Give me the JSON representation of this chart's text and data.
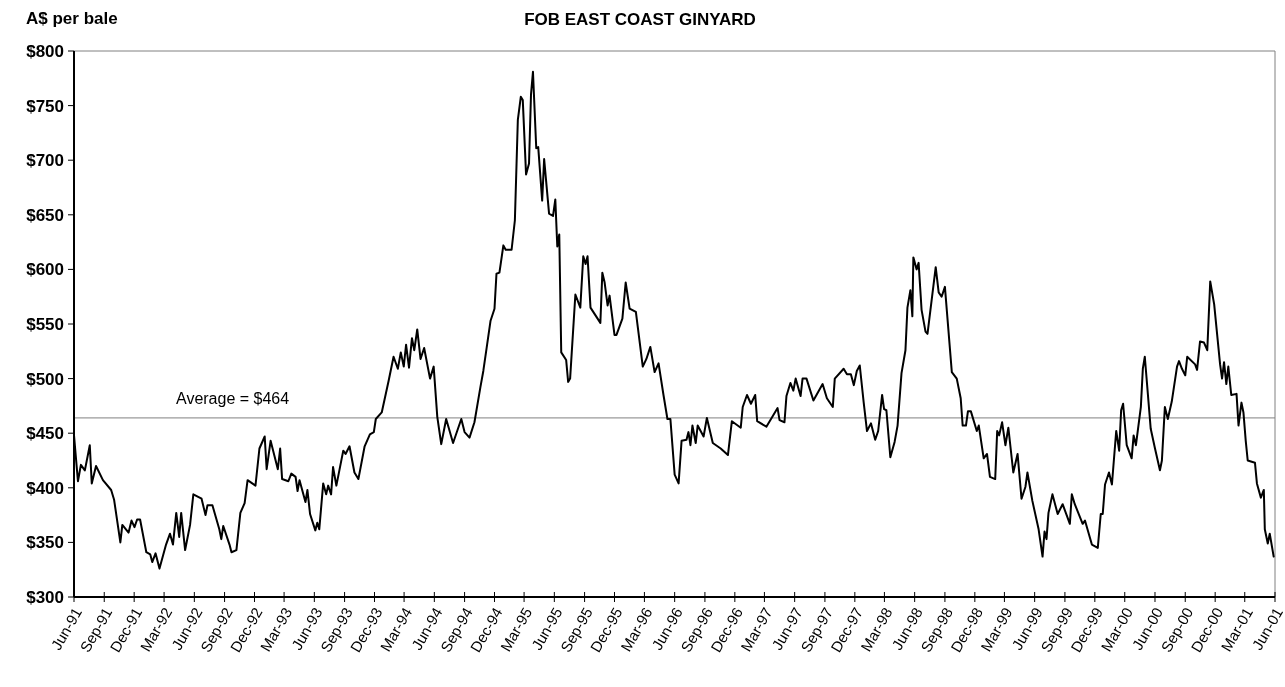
{
  "chart_data": {
    "type": "line",
    "subtitle": "FOB EAST COAST GINYARD",
    "ylabel": "A$ per bale",
    "x": [
      "1991-06-01",
      "1991-06-13",
      "1991-06-22",
      "1991-07-04",
      "1991-07-19",
      "1991-07-25",
      "1991-08-07",
      "1991-08-28",
      "1991-09-22",
      "1991-10-01",
      "1991-10-20",
      "1991-10-26",
      "1991-11-14",
      "1991-11-23",
      "1991-12-02",
      "1991-12-10",
      "1991-12-19",
      "1992-01-07",
      "1992-01-19",
      "1992-01-25",
      "1992-02-04",
      "1992-02-16",
      "1992-03-07",
      "1992-03-19",
      "1992-03-28",
      "1992-04-07",
      "1992-04-16",
      "1992-04-22",
      "1992-05-04",
      "1992-05-19",
      "1992-05-29",
      "1992-06-23",
      "1992-07-05",
      "1992-07-11",
      "1992-07-26",
      "1992-08-16",
      "1992-08-22",
      "1992-08-28",
      "1992-09-16",
      "1992-09-22",
      "1992-10-07",
      "1992-10-19",
      "1992-11-01",
      "1992-11-10",
      "1992-12-04",
      "1992-12-16",
      "1993-01-01",
      "1993-01-07",
      "1993-01-19",
      "1993-02-10",
      "1993-02-17",
      "1993-02-23",
      "1993-03-14",
      "1993-03-23",
      "1993-04-05",
      "1993-04-11",
      "1993-04-17",
      "1993-05-05",
      "1993-05-11",
      "1993-05-19",
      "1993-06-04",
      "1993-06-10",
      "1993-06-16",
      "1993-06-28",
      "1993-07-07",
      "1993-07-13",
      "1993-07-22",
      "1993-07-28",
      "1993-08-07",
      "1993-08-28",
      "1993-09-04",
      "1993-09-16",
      "1993-10-01",
      "1993-10-13",
      "1993-11-01",
      "1993-11-17",
      "1993-11-29",
      "1993-12-05",
      "1993-12-23",
      "1994-01-13",
      "1994-01-28",
      "1994-02-10",
      "1994-02-19",
      "1994-02-28",
      "1994-03-07",
      "1994-03-16",
      "1994-03-25",
      "1994-04-01",
      "1994-04-10",
      "1994-04-20",
      "1994-05-01",
      "1994-05-19",
      "1994-05-30",
      "1994-06-10",
      "1994-06-22",
      "1994-07-07",
      "1994-07-28",
      "1994-08-22",
      "1994-09-01",
      "1994-09-16",
      "1994-10-01",
      "1994-10-19",
      "1994-10-28",
      "1994-11-07",
      "1994-11-19",
      "1994-12-01",
      "1994-12-07",
      "1994-12-16",
      "1994-12-28",
      "1995-01-04",
      "1995-01-22",
      "1995-02-01",
      "1995-02-10",
      "1995-02-19",
      "1995-02-25",
      "1995-03-07",
      "1995-03-16",
      "1995-03-22",
      "1995-03-28",
      "1995-04-07",
      "1995-04-13",
      "1995-04-25",
      "1995-05-01",
      "1995-05-16",
      "1995-05-28",
      "1995-06-04",
      "1995-06-10",
      "1995-06-16",
      "1995-06-22",
      "1995-07-07",
      "1995-07-13",
      "1995-07-19",
      "1995-08-04",
      "1995-08-19",
      "1995-08-28",
      "1995-09-04",
      "1995-09-10",
      "1995-09-19",
      "1995-10-19",
      "1995-10-25",
      "1995-11-01",
      "1995-11-10",
      "1995-11-16",
      "1995-12-01",
      "1995-12-07",
      "1995-12-25",
      "1996-01-04",
      "1996-01-16",
      "1996-02-04",
      "1996-02-25",
      "1996-03-07",
      "1996-03-19",
      "1996-04-01",
      "1996-04-13",
      "1996-04-28",
      "1996-05-10",
      "1996-05-19",
      "1996-06-01",
      "1996-06-13",
      "1996-06-22",
      "1996-07-07",
      "1996-07-13",
      "1996-07-19",
      "1996-07-25",
      "1996-08-04",
      "1996-08-10",
      "1996-08-28",
      "1996-09-07",
      "1996-09-25",
      "1996-10-19",
      "1996-11-10",
      "1996-11-22",
      "1996-12-19",
      "1996-12-25",
      "1997-01-07",
      "1997-01-19",
      "1997-02-01",
      "1997-02-07",
      "1997-03-07",
      "1997-04-10",
      "1997-04-16",
      "1997-05-01",
      "1997-05-07",
      "1997-05-19",
      "1997-05-28",
      "1997-06-04",
      "1997-06-19",
      "1997-06-25",
      "1997-07-07",
      "1997-07-28",
      "1997-08-25",
      "1997-09-07",
      "1997-09-25",
      "1997-10-01",
      "1997-10-28",
      "1997-11-07",
      "1997-11-19",
      "1997-11-28",
      "1997-12-07",
      "1997-12-16",
      "1997-12-28",
      "1998-01-07",
      "1998-01-19",
      "1998-02-01",
      "1998-02-10",
      "1998-02-22",
      "1998-02-28",
      "1998-03-07",
      "1998-03-19",
      "1998-04-01",
      "1998-04-10",
      "1998-04-22",
      "1998-05-04",
      "1998-05-10",
      "1998-05-19",
      "1998-05-25",
      "1998-05-28",
      "1998-06-07",
      "1998-06-13",
      "1998-06-22",
      "1998-07-04",
      "1998-07-10",
      "1998-08-04",
      "1998-08-13",
      "1998-08-22",
      "1998-09-01",
      "1998-09-22",
      "1998-10-07",
      "1998-10-19",
      "1998-10-25",
      "1998-11-04",
      "1998-11-10",
      "1998-11-19",
      "1998-12-07",
      "1998-12-13",
      "1998-12-28",
      "1999-01-07",
      "1999-01-16",
      "1999-02-01",
      "1999-02-07",
      "1999-02-13",
      "1999-02-22",
      "1999-03-04",
      "1999-03-13",
      "1999-03-28",
      "1999-04-10",
      "1999-04-22",
      "1999-05-04",
      "1999-05-10",
      "1999-05-25",
      "1999-06-13",
      "1999-06-25",
      "1999-07-01",
      "1999-07-07",
      "1999-07-13",
      "1999-07-25",
      "1999-08-10",
      "1999-08-25",
      "1999-09-16",
      "1999-09-22",
      "1999-10-01",
      "1999-10-25",
      "1999-11-01",
      "1999-11-22",
      "1999-12-10",
      "1999-12-19",
      "1999-12-25",
      "2000-01-01",
      "2000-01-13",
      "2000-01-22",
      "2000-02-04",
      "2000-02-13",
      "2000-02-19",
      "2000-02-25",
      "2000-03-07",
      "2000-03-22",
      "2000-03-28",
      "2000-04-04",
      "2000-04-19",
      "2000-04-25",
      "2000-05-01",
      "2000-05-19",
      "2000-06-01",
      "2000-06-16",
      "2000-06-22",
      "2000-07-01",
      "2000-07-10",
      "2000-07-22",
      "2000-08-07",
      "2000-08-13",
      "2000-08-22",
      "2000-09-01",
      "2000-09-07",
      "2000-10-01",
      "2000-10-07",
      "2000-10-16",
      "2000-10-28",
      "2000-11-07",
      "2000-11-16",
      "2000-11-28",
      "2000-12-16",
      "2000-12-22",
      "2000-12-28",
      "2001-01-04",
      "2001-01-10",
      "2001-01-19",
      "2001-02-04",
      "2001-02-10",
      "2001-02-19",
      "2001-02-25",
      "2001-03-04",
      "2001-03-10",
      "2001-04-01",
      "2001-04-07",
      "2001-04-19",
      "2001-04-28",
      "2001-05-01",
      "2001-05-10",
      "2001-05-16",
      "2001-05-28"
    ],
    "series": [
      {
        "color": "#000000",
        "values": [
          448,
          406,
          421,
          416,
          439,
          404,
          420,
          407,
          398,
          389,
          350,
          366,
          359,
          370,
          364,
          371,
          371,
          341,
          339,
          332,
          340,
          326,
          348,
          358,
          348,
          377,
          355,
          377,
          343,
          366,
          394,
          390,
          375,
          384,
          384,
          362,
          353,
          365,
          348,
          341,
          343,
          377,
          386,
          407,
          402,
          436,
          447,
          417,
          443,
          417,
          436,
          408,
          406,
          413,
          410,
          397,
          407,
          387,
          398,
          376,
          361,
          368,
          362,
          404,
          394,
          402,
          394,
          419,
          402,
          434,
          431,
          438,
          414,
          408,
          438,
          449,
          451,
          463,
          469,
          498,
          520,
          509,
          524,
          511,
          531,
          510,
          537,
          526,
          545,
          518,
          528,
          500,
          511,
          465,
          440,
          463,
          441,
          463,
          451,
          446,
          460,
          492,
          507,
          528,
          553,
          564,
          596,
          597,
          622,
          618,
          618,
          645,
          737,
          758,
          755,
          687,
          697,
          760,
          781,
          711,
          712,
          663,
          701,
          651,
          649,
          664,
          621,
          632,
          524,
          517,
          497,
          500,
          577,
          565,
          612,
          605,
          612,
          565,
          551,
          597,
          588,
          567,
          576,
          540,
          540,
          555,
          588,
          564,
          561,
          511,
          518,
          529,
          506,
          514,
          485,
          463,
          463,
          412,
          404,
          443,
          444,
          451,
          439,
          457,
          441,
          457,
          447,
          464,
          441,
          436,
          430,
          461,
          455,
          474,
          485,
          477,
          485,
          461,
          456,
          473,
          462,
          460,
          484,
          496,
          489,
          500,
          484,
          500,
          500,
          480,
          495,
          482,
          474,
          500,
          509,
          504,
          504,
          494,
          507,
          512,
          478,
          452,
          459,
          444,
          452,
          485,
          472,
          471,
          428,
          442,
          457,
          505,
          526,
          565,
          581,
          557,
          611,
          600,
          606,
          563,
          543,
          541,
          602,
          579,
          575,
          584,
          506,
          500,
          482,
          457,
          457,
          470,
          470,
          452,
          457,
          427,
          431,
          410,
          408,
          452,
          448,
          460,
          439,
          455,
          414,
          431,
          390,
          401,
          414,
          388,
          362,
          337,
          360,
          353,
          377,
          394,
          376,
          385,
          367,
          394,
          385,
          367,
          370,
          348,
          345,
          376,
          376,
          403,
          414,
          403,
          452,
          434,
          471,
          477,
          439,
          427,
          448,
          439,
          474,
          509,
          520,
          454,
          436,
          416,
          425,
          474,
          463,
          479,
          511,
          516,
          509,
          503,
          520,
          513,
          508,
          534,
          533,
          526,
          589,
          568,
          513,
          500,
          515,
          495,
          511,
          485,
          486,
          457,
          478,
          469,
          443,
          425,
          423,
          404,
          391,
          398,
          362,
          349,
          358,
          337
        ]
      }
    ],
    "xlim": [
      "1991-06-01",
      "2001-06-01"
    ],
    "xticks": [
      {
        "value": "1991-06",
        "label": "Jun-91"
      },
      {
        "value": "1991-09",
        "label": "Sep-91"
      },
      {
        "value": "1991-12",
        "label": "Dec-91"
      },
      {
        "value": "1992-03",
        "label": "Mar-92"
      },
      {
        "value": "1992-06",
        "label": "Jun-92"
      },
      {
        "value": "1992-09",
        "label": "Sep-92"
      },
      {
        "value": "1992-12",
        "label": "Dec-92"
      },
      {
        "value": "1993-03",
        "label": "Mar-93"
      },
      {
        "value": "1993-06",
        "label": "Jun-93"
      },
      {
        "value": "1993-09",
        "label": "Sep-93"
      },
      {
        "value": "1993-12",
        "label": "Dec-93"
      },
      {
        "value": "1994-03",
        "label": "Mar-94"
      },
      {
        "value": "1994-06",
        "label": "Jun-94"
      },
      {
        "value": "1994-09",
        "label": "Sep-94"
      },
      {
        "value": "1994-12",
        "label": "Dec-94"
      },
      {
        "value": "1995-03",
        "label": "Mar-95"
      },
      {
        "value": "1995-06",
        "label": "Jun-95"
      },
      {
        "value": "1995-09",
        "label": "Sep-95"
      },
      {
        "value": "1995-12",
        "label": "Dec-95"
      },
      {
        "value": "1996-03",
        "label": "Mar-96"
      },
      {
        "value": "1996-06",
        "label": "Jun-96"
      },
      {
        "value": "1996-09",
        "label": "Sep-96"
      },
      {
        "value": "1996-12",
        "label": "Dec-96"
      },
      {
        "value": "1997-03",
        "label": "Mar-97"
      },
      {
        "value": "1997-06",
        "label": "Jun-97"
      },
      {
        "value": "1997-09",
        "label": "Sep-97"
      },
      {
        "value": "1997-12",
        "label": "Dec-97"
      },
      {
        "value": "1998-03",
        "label": "Mar-98"
      },
      {
        "value": "1998-06",
        "label": "Jun-98"
      },
      {
        "value": "1998-09",
        "label": "Sep-98"
      },
      {
        "value": "1998-12",
        "label": "Dec-98"
      },
      {
        "value": "1999-03",
        "label": "Mar-99"
      },
      {
        "value": "1999-06",
        "label": "Jun-99"
      },
      {
        "value": "1999-09",
        "label": "Sep-99"
      },
      {
        "value": "1999-12",
        "label": "Dec-99"
      },
      {
        "value": "2000-03",
        "label": "Mar-00"
      },
      {
        "value": "2000-06",
        "label": "Jun-00"
      },
      {
        "value": "2000-09",
        "label": "Sep-00"
      },
      {
        "value": "2000-12",
        "label": "Dec-00"
      },
      {
        "value": "2001-03",
        "label": "Mar-01"
      },
      {
        "value": "2001-06",
        "label": "Jun-01"
      }
    ],
    "ylim": [
      300,
      800
    ],
    "yticks": [
      {
        "value": 300,
        "label": "$300"
      },
      {
        "value": 350,
        "label": "$350"
      },
      {
        "value": 400,
        "label": "$400"
      },
      {
        "value": 450,
        "label": "$450"
      },
      {
        "value": 500,
        "label": "$500"
      },
      {
        "value": 550,
        "label": "$550"
      },
      {
        "value": 600,
        "label": "$600"
      },
      {
        "value": 650,
        "label": "$650"
      },
      {
        "value": 700,
        "label": "$700"
      },
      {
        "value": 750,
        "label": "$750"
      },
      {
        "value": 800,
        "label": "$800"
      }
    ],
    "ref_lines": [
      {
        "axis": "y",
        "value": 464,
        "label": "Average = $464",
        "color": "#808080"
      }
    ],
    "grid": false,
    "marker": "none",
    "line_style": "solid"
  }
}
